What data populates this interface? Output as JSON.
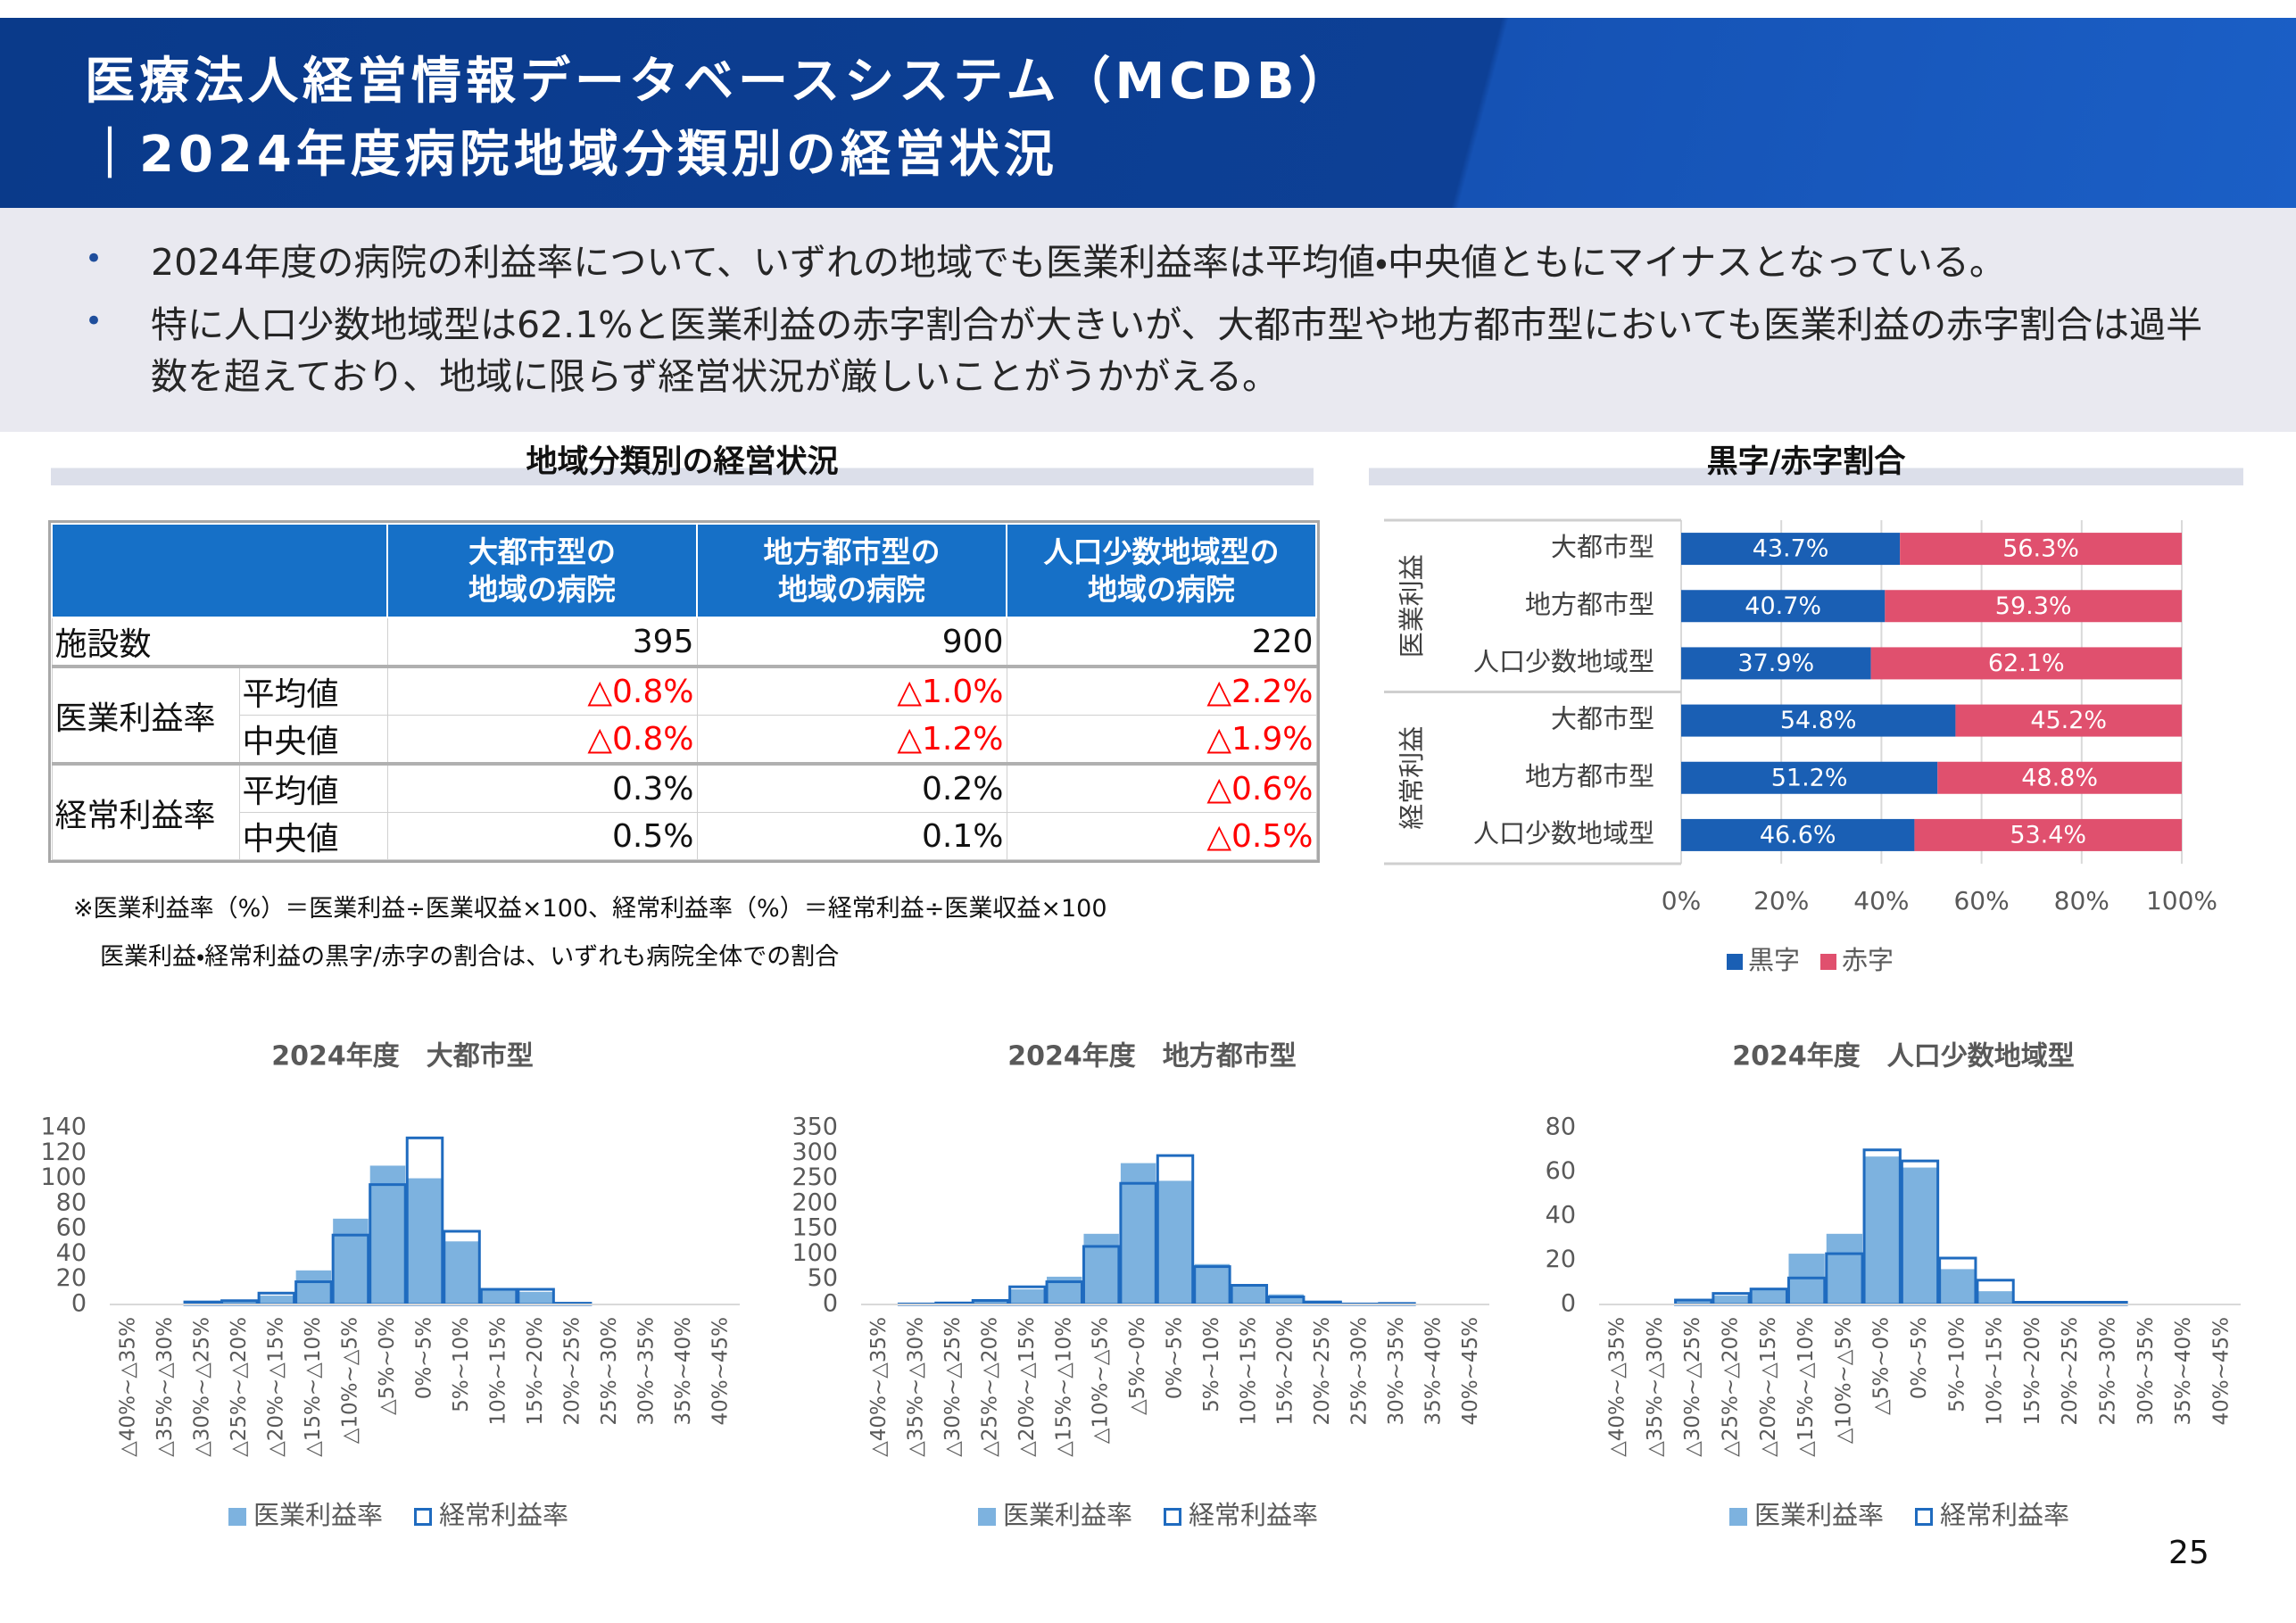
{
  "header": {
    "title_lines": [
      "医療法人経営情報データベースシステム（MCDB）",
      "｜2024年度病院地域分類別の経営状況"
    ]
  },
  "bullets": [
    "2024年度の病院の利益率について、いずれの地域でも医業利益率は平均値・中央値ともにマイナスとなっている。",
    "特に人口少数地域型は62.1%と医業利益の赤字割合が大きいが、大都市型や地方都市型においても医業利益の赤字割合は過半数を超えており、地域に限らず経営状況が厳しいことがうかがえる。"
  ],
  "table": {
    "title": "地域分類別の経営状況",
    "columns": [
      [
        "大都市型の",
        "地域の病院"
      ],
      [
        "地方都市型の",
        "地域の病院"
      ],
      [
        "人口少数地域型の",
        "地域の病院"
      ]
    ],
    "negative_color": "#ff0000",
    "rows": [
      {
        "label": "施設数",
        "values": [
          395,
          900,
          220
        ]
      },
      {
        "label": "医業利益率",
        "rows": [
          {
            "label": "平均値",
            "values": [
              -0.8,
              -1.0,
              -2.2
            ],
            "value_labels": [
              "△0.8%",
              "△1.0%",
              "△2.2%"
            ]
          },
          {
            "label": "中央値",
            "values": [
              -0.8,
              -1.2,
              -1.9
            ],
            "value_labels": [
              "△0.8%",
              "△1.2%",
              "△1.9%"
            ]
          }
        ]
      },
      {
        "label": "経常利益率",
        "rows": [
          {
            "label": "平均値",
            "values": [
              0.3,
              0.2,
              -0.6
            ],
            "value_labels": [
              "0.3%",
              "0.2%",
              "△0.6%"
            ]
          },
          {
            "label": "中央値",
            "values": [
              0.5,
              0.1,
              -0.5
            ],
            "value_labels": [
              "0.5%",
              "0.1%",
              "△0.5%"
            ]
          }
        ]
      }
    ]
  },
  "notes": [
    "※医業利益率（%）＝医業利益÷医業収益×100、経常利益率（%）＝経常利益÷医業収益×100",
    "医業利益・経常利益の黒字/赤字の割合は、いずれも病院全体での割合"
  ],
  "page_number": 25,
  "chart_data": [
    {
      "type": "stacked_bar",
      "orientation": "horizontal",
      "title": "黒字/赤字割合",
      "category_groups": [
        "医業利益",
        "経常利益"
      ],
      "categories": [
        "大都市型",
        "地方都市型",
        "人口少数地域型",
        "大都市型",
        "地方都市型",
        "人口少数地域型"
      ],
      "series": [
        {
          "name": "黒字",
          "color": "#1a5fb4",
          "values": [
            43.7,
            40.7,
            37.9,
            54.8,
            51.2,
            46.6
          ],
          "value_labels": [
            "43.7%",
            "40.7%",
            "37.9%",
            "54.8%",
            "51.2%",
            "46.6%"
          ]
        },
        {
          "name": "赤字",
          "color": "#e0506e",
          "values": [
            56.3,
            59.3,
            62.1,
            45.2,
            48.8,
            53.4
          ],
          "value_labels": [
            "56.3%",
            "59.3%",
            "62.1%",
            "45.2%",
            "48.8%",
            "53.4%"
          ]
        }
      ],
      "xlim": [
        0,
        100
      ],
      "xticks": [
        {
          "value": 0,
          "label": "0%"
        },
        {
          "value": 20,
          "label": "20%"
        },
        {
          "value": 40,
          "label": "40%"
        },
        {
          "value": 60,
          "label": "60%"
        },
        {
          "value": 80,
          "label": "80%"
        },
        {
          "value": 100,
          "label": "100%"
        }
      ],
      "grid": true,
      "legend": "bottom"
    },
    {
      "type": "bar",
      "title": "2024年度　大都市型",
      "categories": [
        "△40%~△35%",
        "△35%~△30%",
        "△30%~△25%",
        "△25%~△20%",
        "△20%~△15%",
        "△15%~△10%",
        "△10%~△5%",
        "△5%~0%",
        "0%~5%",
        "5%~10%",
        "10%~15%",
        "15%~20%",
        "20%~25%",
        "25%~30%",
        "30%~35%",
        "35%~40%",
        "40%~45%"
      ],
      "series": [
        {
          "name": "医業利益率",
          "color": "#7db2df",
          "style": "filled",
          "values": [
            0,
            0,
            2,
            3,
            7,
            27,
            68,
            110,
            100,
            50,
            12,
            10,
            1,
            0,
            0,
            0,
            0
          ]
        },
        {
          "name": "経常利益率",
          "color": "#1f6bbf",
          "style": "outline",
          "values": [
            0,
            0,
            2,
            3,
            9,
            18,
            55,
            95,
            132,
            58,
            12,
            12,
            1,
            0,
            0,
            0,
            0
          ]
        }
      ],
      "ylim": [
        0,
        140
      ],
      "yticks": [
        0,
        20,
        40,
        60,
        80,
        100,
        120,
        140
      ],
      "legend": "bottom"
    },
    {
      "type": "bar",
      "title": "2024年度　地方都市型",
      "categories": [
        "△40%~△35%",
        "△35%~△30%",
        "△30%~△25%",
        "△25%~△20%",
        "△20%~△15%",
        "△15%~△10%",
        "△10%~△5%",
        "△5%~0%",
        "0%~5%",
        "5%~10%",
        "10%~15%",
        "15%~20%",
        "20%~25%",
        "25%~30%",
        "30%~35%",
        "35%~40%",
        "40%~45%"
      ],
      "series": [
        {
          "name": "医業利益率",
          "color": "#7db2df",
          "style": "filled",
          "values": [
            0,
            1,
            3,
            8,
            30,
            55,
            140,
            280,
            245,
            80,
            40,
            20,
            5,
            1,
            2,
            0,
            0
          ]
        },
        {
          "name": "経常利益率",
          "color": "#1f6bbf",
          "style": "outline",
          "values": [
            0,
            1,
            3,
            8,
            35,
            45,
            115,
            240,
            295,
            75,
            38,
            15,
            5,
            1,
            2,
            0,
            0
          ]
        }
      ],
      "ylim": [
        0,
        350
      ],
      "yticks": [
        0,
        50,
        100,
        150,
        200,
        250,
        300,
        350
      ],
      "legend": "bottom"
    },
    {
      "type": "bar",
      "title": "2024年度　人口少数地域型",
      "categories": [
        "△40%~△35%",
        "△35%~△30%",
        "△30%~△25%",
        "△25%~△20%",
        "△20%~△15%",
        "△15%~△10%",
        "△10%~△5%",
        "△5%~0%",
        "0%~5%",
        "5%~10%",
        "10%~15%",
        "15%~20%",
        "20%~25%",
        "25%~30%",
        "30%~35%",
        "35%~40%",
        "40%~45%"
      ],
      "series": [
        {
          "name": "医業利益率",
          "color": "#7db2df",
          "style": "filled",
          "values": [
            0,
            0,
            2,
            4,
            7,
            23,
            32,
            67,
            62,
            16,
            6,
            1,
            1,
            1,
            0,
            0,
            0
          ]
        },
        {
          "name": "経常利益率",
          "color": "#1f6bbf",
          "style": "outline",
          "values": [
            0,
            0,
            2,
            5,
            7,
            12,
            23,
            70,
            65,
            21,
            11,
            1,
            1,
            1,
            0,
            0,
            0
          ]
        }
      ],
      "ylim": [
        0,
        80
      ],
      "yticks": [
        0,
        20,
        40,
        60,
        80
      ],
      "legend": "bottom"
    }
  ]
}
